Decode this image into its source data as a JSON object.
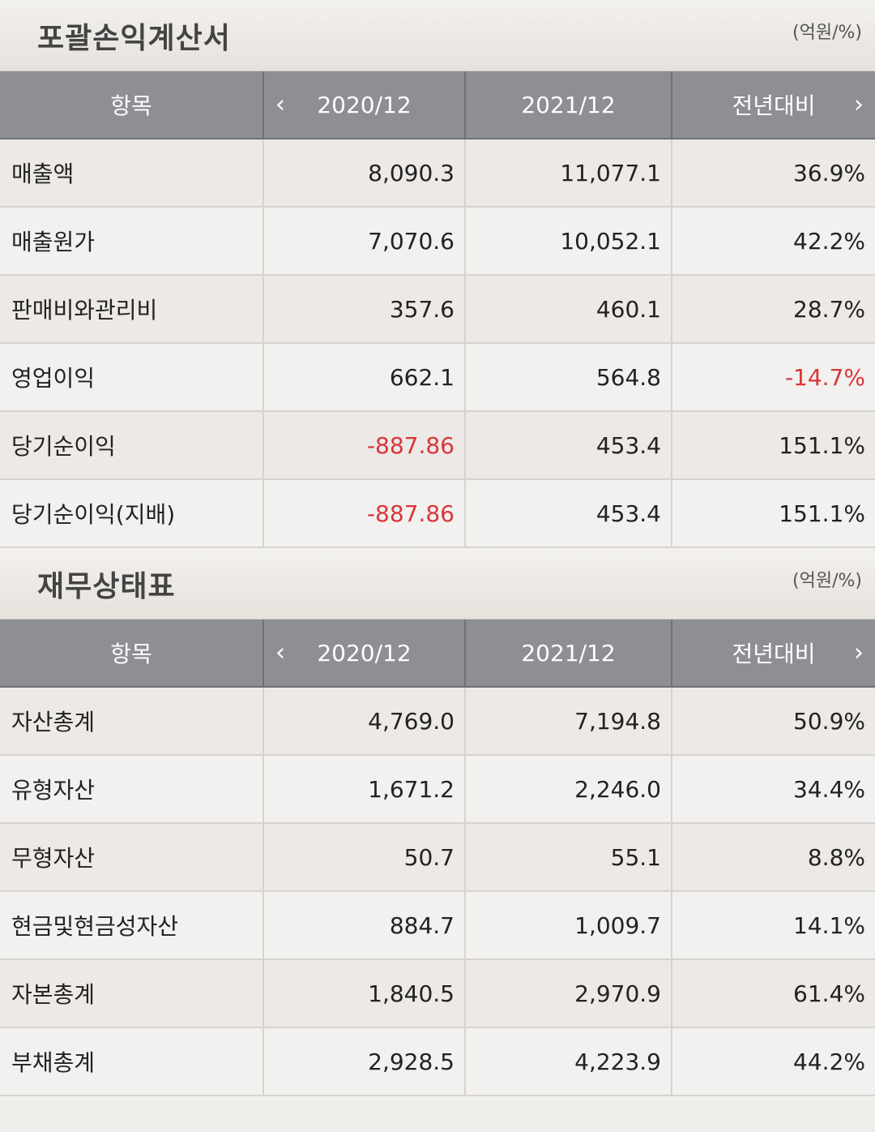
{
  "income": {
    "title": "포괄손익계산서",
    "unit": "(억원/%)",
    "headers": [
      "항목",
      "2020/12",
      "2021/12",
      "전년대비"
    ],
    "rows": [
      {
        "label": "매출액",
        "v2020": "8,090.3",
        "v2021": "11,077.1",
        "yoy": "36.9%"
      },
      {
        "label": "매출원가",
        "v2020": "7,070.6",
        "v2021": "10,052.1",
        "yoy": "42.2%"
      },
      {
        "label": "판매비와관리비",
        "v2020": "357.6",
        "v2021": "460.1",
        "yoy": "28.7%"
      },
      {
        "label": "영업이익",
        "v2020": "662.1",
        "v2021": "564.8",
        "yoy": "-14.7%"
      },
      {
        "label": "당기순이익",
        "v2020": "-887.86",
        "v2021": "453.4",
        "yoy": "151.1%"
      },
      {
        "label": "당기순이익(지배)",
        "v2020": "-887.86",
        "v2021": "453.4",
        "yoy": "151.1%"
      }
    ]
  },
  "balance": {
    "title": "재무상태표",
    "unit": "(억원/%)",
    "headers": [
      "항목",
      "2020/12",
      "2021/12",
      "전년대비"
    ],
    "rows": [
      {
        "label": "자산총계",
        "v2020": "4,769.0",
        "v2021": "7,194.8",
        "yoy": "50.9%"
      },
      {
        "label": "유형자산",
        "v2020": "1,671.2",
        "v2021": "2,246.0",
        "yoy": "34.4%"
      },
      {
        "label": "무형자산",
        "v2020": "50.7",
        "v2021": "55.1",
        "yoy": "8.8%"
      },
      {
        "label": "현금및현금성자산",
        "v2020": "884.7",
        "v2021": "1,009.7",
        "yoy": "14.1%"
      },
      {
        "label": "자본총계",
        "v2020": "1,840.5",
        "v2021": "2,970.9",
        "yoy": "61.4%"
      },
      {
        "label": "부채총계",
        "v2020": "2,928.5",
        "v2021": "4,223.9",
        "yoy": "44.2%"
      }
    ]
  },
  "colors": {
    "header_bg": "#8d8f93",
    "negative": "#d8363a"
  },
  "icons": {
    "prev": "chevron-left-icon",
    "next": "chevron-right-icon"
  }
}
